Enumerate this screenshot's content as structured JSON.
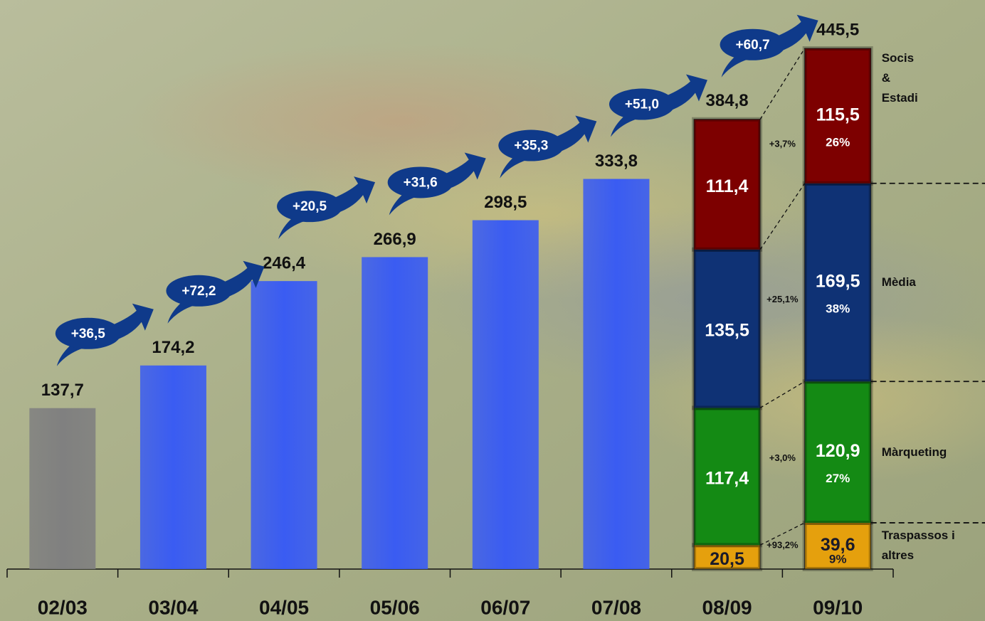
{
  "chart_data": {
    "type": "bar",
    "categories": [
      "02/03",
      "03/04",
      "04/05",
      "05/06",
      "06/07",
      "07/08",
      "08/09",
      "09/10"
    ],
    "values": [
      137.7,
      174.2,
      246.4,
      266.9,
      298.5,
      333.8,
      384.8,
      445.5
    ],
    "value_labels": [
      "137,7",
      "174,2",
      "246,4",
      "266,9",
      "298,5",
      "333,8",
      "384,8",
      "445,5"
    ],
    "colors": [
      "#808080",
      "#3a5cf2",
      "#3a5cf2",
      "#3a5cf2",
      "#3a5cf2",
      "#3a5cf2",
      "#1a1a1a",
      "#1a1a1a"
    ],
    "changes": {
      "values": [
        36.5,
        72.2,
        20.5,
        31.6,
        35.3,
        51.0,
        60.7
      ],
      "value_labels": [
        "+36,5",
        "+72,2",
        "+20,5",
        "+31,6",
        "+35,3",
        "+51,0",
        "+60,7"
      ]
    },
    "series": [
      {
        "name": "Traspassos i altres",
        "color": "#e5a00d",
        "values": [
          null,
          null,
          null,
          null,
          null,
          null,
          20.5,
          39.6
        ],
        "value_labels": [
          null,
          null,
          null,
          null,
          null,
          null,
          "20,5",
          "39,6"
        ],
        "shares": [
          null,
          null,
          null,
          null,
          null,
          null,
          null,
          9
        ],
        "share_labels": [
          null,
          null,
          null,
          null,
          null,
          null,
          null,
          "9%"
        ],
        "growth": 93.2,
        "growth_label": "+93,2%"
      },
      {
        "name": "Màrqueting",
        "color": "#148a14",
        "values": [
          null,
          null,
          null,
          null,
          null,
          null,
          117.4,
          120.9
        ],
        "value_labels": [
          null,
          null,
          null,
          null,
          null,
          null,
          "117,4",
          "120,9"
        ],
        "shares": [
          null,
          null,
          null,
          null,
          null,
          null,
          null,
          27
        ],
        "share_labels": [
          null,
          null,
          null,
          null,
          null,
          null,
          null,
          "27%"
        ],
        "growth": 3.0,
        "growth_label": "+3,0%"
      },
      {
        "name": "Mèdia",
        "color": "#0f3275",
        "values": [
          null,
          null,
          null,
          null,
          null,
          null,
          135.5,
          169.5
        ],
        "value_labels": [
          null,
          null,
          null,
          null,
          null,
          null,
          "135,5",
          "169,5"
        ],
        "shares": [
          null,
          null,
          null,
          null,
          null,
          null,
          null,
          38
        ],
        "share_labels": [
          null,
          null,
          null,
          null,
          null,
          null,
          null,
          "38%"
        ],
        "growth": 25.1,
        "growth_label": "+25,1%"
      },
      {
        "name": "Socis & Estadi",
        "color": "#7d0000",
        "values": [
          null,
          null,
          null,
          null,
          null,
          null,
          111.4,
          115.5
        ],
        "value_labels": [
          null,
          null,
          null,
          null,
          null,
          null,
          "111,4",
          "115,5"
        ],
        "shares": [
          null,
          null,
          null,
          null,
          null,
          null,
          null,
          26
        ],
        "share_labels": [
          null,
          null,
          null,
          null,
          null,
          null,
          null,
          "26%"
        ],
        "growth": 3.7,
        "growth_label": "+3,7%"
      }
    ]
  }
}
